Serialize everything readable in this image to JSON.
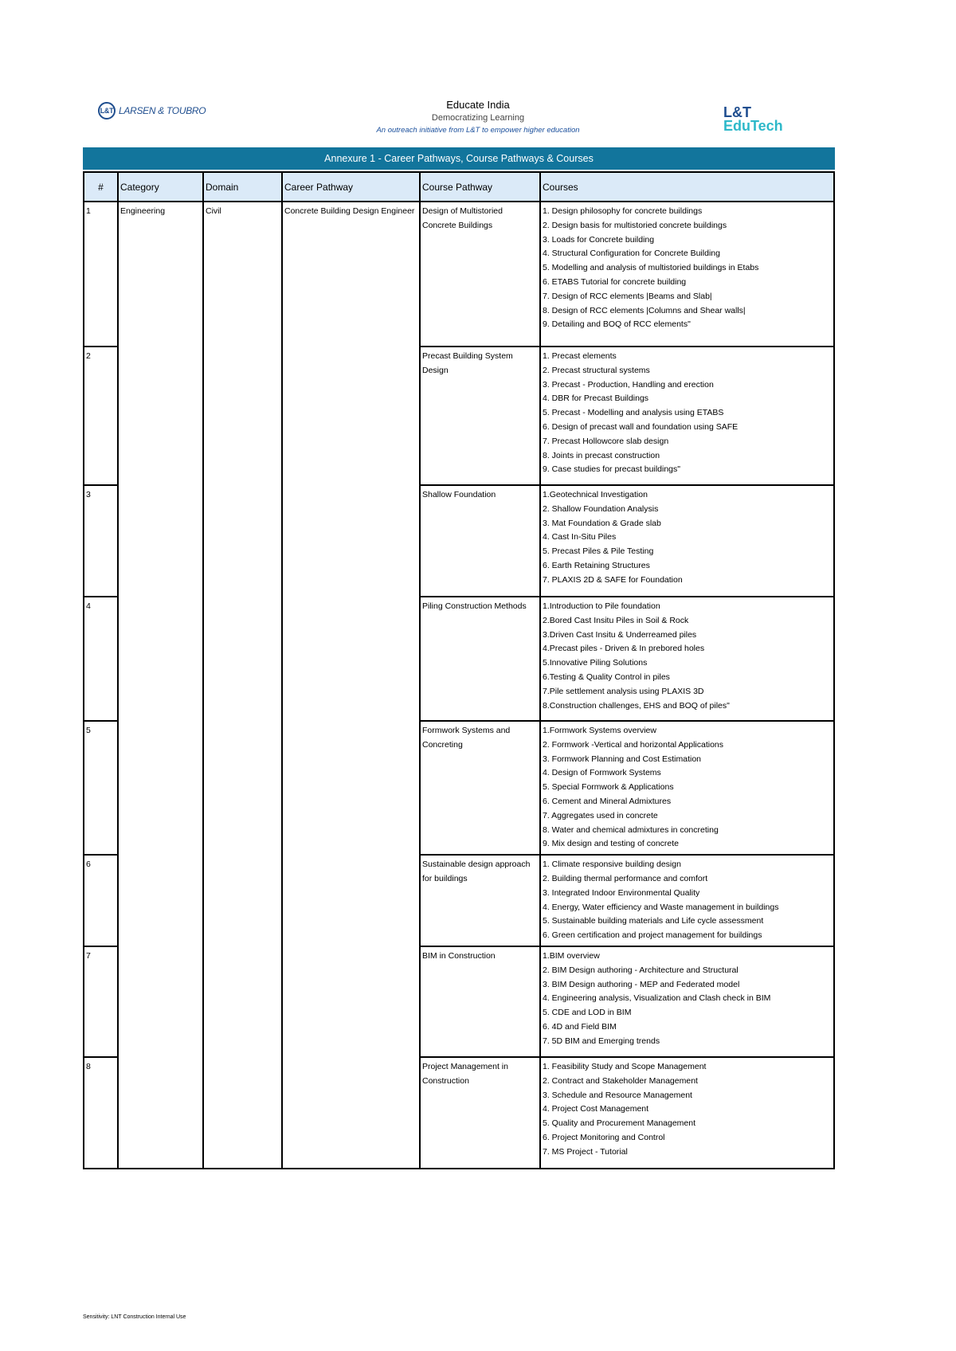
{
  "header": {
    "left_logo": "LARSEN & TOUBRO",
    "title": "Educate India",
    "subtitle": "Democratizing Learning",
    "tagline": "An outreach initiative from L&T to empower higher education",
    "right_logo_line1": "L&T",
    "right_logo_line2": "EduTech"
  },
  "banner": "Annexure 1 - Career Pathways, Course Pathways & Courses",
  "table": {
    "columns": [
      "#",
      "Category",
      "Domain",
      "Career Pathway",
      "Course Pathway",
      "Courses"
    ],
    "category": "Engineering",
    "domain": "Civil",
    "career_pathway": "Concrete Building Design Engineer",
    "rows": [
      {
        "num": "1",
        "course_pathway": "Design of Multistoried Concrete Buildings",
        "courses": [
          "1. Design philosophy for concrete buildings",
          "2. Design basis for multistoried concrete buildings",
          "3. Loads for Concrete building",
          "4. Structural Configuration for Concrete Building",
          "5. Modelling and analysis of multistoried buildings in Etabs",
          "6. ETABS Tutorial for concrete building",
          "7. Design of RCC elements |Beams and Slab|",
          "8. Design of RCC elements |Columns and Shear walls|",
          "9. Detailing and BOQ of RCC elements\""
        ]
      },
      {
        "num": "2",
        "course_pathway": "Precast Building System Design",
        "courses": [
          "1. Precast elements",
          "2. Precast structural systems",
          "3. Precast - Production, Handling and erection",
          "4. DBR for Precast Buildings",
          "5. Precast - Modelling and analysis using ETABS",
          "6. Design of precast wall and foundation using SAFE",
          "7. Precast Hollowcore slab design",
          "8. Joints in precast construction",
          "9. Case studies for precast buildings\""
        ]
      },
      {
        "num": "3",
        "course_pathway": "Shallow Foundation",
        "courses": [
          "1.Geotechnical Investigation",
          "2. Shallow Foundation Analysis",
          "3. Mat Foundation & Grade slab",
          "4. Cast In-Situ Piles",
          "5. Precast Piles & Pile Testing",
          "6. Earth Retaining Structures",
          "7. PLAXIS 2D & SAFE for Foundation"
        ]
      },
      {
        "num": "4",
        "course_pathway": "Piling Construction Methods",
        "courses": [
          "1.Introduction to Pile foundation",
          "2.Bored Cast Insitu Piles in Soil & Rock",
          "3.Driven Cast Insitu & Underreamed piles",
          "4.Precast piles - Driven & In prebored holes",
          "5.Innovative Piling Solutions",
          "6.Testing & Quality Control in piles",
          "7.Pile settlement analysis using PLAXIS 3D",
          "8.Construction challenges, EHS and BOQ of piles\""
        ]
      },
      {
        "num": "5",
        "course_pathway": "Formwork Systems and Concreting",
        "courses": [
          "1.Formwork Systems overview",
          "2. Formwork -Vertical and horizontal Applications",
          "3. Formwork Planning and Cost Estimation",
          "4. Design of Formwork Systems",
          "5. Special Formwork & Applications",
          "6. Cement and Mineral Admixtures",
          "7. Aggregates used in concrete",
          "8. Water and chemical admixtures in concreting",
          "9. Mix design and testing of concrete"
        ]
      },
      {
        "num": "6",
        "course_pathway": "Sustainable design approach for buildings",
        "courses": [
          "1. Climate responsive building design",
          "2. Building thermal performance and comfort",
          "3. Integrated Indoor Environmental Quality",
          "4. Energy, Water efficiency and Waste management in buildings",
          "5. Sustainable building materials and Life cycle assessment",
          "6. Green certification and project management for buildings"
        ]
      },
      {
        "num": "7",
        "course_pathway": "BIM in Construction",
        "courses": [
          "1.BIM overview",
          "2. BIM Design authoring - Architecture and Structural",
          "3. BIM Design authoring - MEP and Federated model",
          "4. Engineering analysis, Visualization and Clash check in BIM",
          "5. CDE and LOD in BIM",
          "6. 4D and Field BIM",
          "7. 5D BIM and Emerging trends"
        ]
      },
      {
        "num": "8",
        "course_pathway": "Project Management in Construction",
        "courses": [
          "1. Feasibility Study and Scope Management",
          "2. Contract and Stakeholder Management",
          "3. Schedule and Resource Management",
          "4. Project Cost Management",
          "5. Quality and Procurement Management",
          "6. Project Monitoring and Control",
          "7. MS Project - Tutorial"
        ]
      }
    ]
  },
  "footer": "Sensitivity: LNT Construction Internal Use",
  "colors": {
    "banner": "#12759c",
    "header_row": "#dbeaf8"
  }
}
